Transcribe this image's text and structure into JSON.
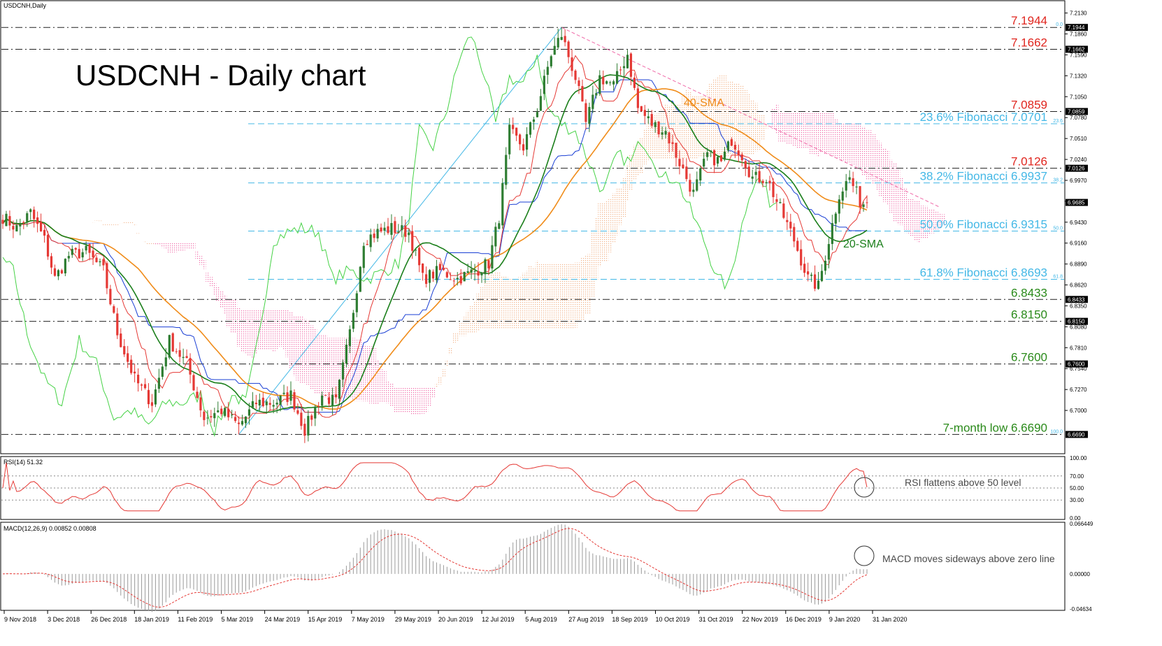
{
  "window": {
    "symbol_label": "USDCNH,Daily",
    "main_title": "USDCNH - Daily chart"
  },
  "colors": {
    "background": "#ffffff",
    "bull_candle": "#2e7d32",
    "bear_candle": "#e53935",
    "sma20": "#1b7f1b",
    "sma40": "#f08c1a",
    "tenkan": "#e53935",
    "kijun": "#1a3fd4",
    "chikou": "#46d246",
    "cloud": "#f06aa8",
    "fib_line": "#44b8e6",
    "level_red": "#e0261f",
    "level_green": "#2a8a1a",
    "rsi": "#e53935",
    "macd_hist": "#9a9a9a",
    "macd_signal": "#e53935",
    "panel_text": "#4a4a4a"
  },
  "chart_data": [
    {
      "type": "candlestick",
      "panel": "price",
      "title": "USDCNH - Daily chart",
      "symbol": "USDCNH,Daily",
      "ylim": [
        6.645,
        7.228
      ],
      "y_ticks": [
        "7.2130",
        "7.1860",
        "7.1590",
        "7.1320",
        "7.1050",
        "7.0780",
        "7.0510",
        "7.0240",
        "6.9970",
        "6.9700",
        "6.9430",
        "6.9160",
        "6.8890",
        "6.8620",
        "6.8350",
        "6.8080",
        "6.7810",
        "6.7540",
        "6.7270",
        "6.7000"
      ],
      "x_ticks": [
        "9 Nov 2018",
        "3 Dec 2018",
        "26 Dec 2018",
        "18 Jan 2019",
        "11 Feb 2019",
        "5 Mar 2019",
        "24 Mar 2019",
        "15 Apr 2019",
        "7 May 2019",
        "29 May 2019",
        "20 Jun 2019",
        "12 Jul 2019",
        "5 Aug 2019",
        "27 Aug 2019",
        "18 Sep 2019",
        "10 Oct 2019",
        "31 Oct 2019",
        "22 Nov 2019",
        "16 Dec 2019",
        "9 Jan 2020",
        "31 Jan 2020"
      ],
      "anchor_points": [
        {
          "bar": 0,
          "price": 6.95
        },
        {
          "bar": 4,
          "price": 6.935
        },
        {
          "bar": 8,
          "price": 6.955
        },
        {
          "bar": 12,
          "price": 6.92
        },
        {
          "bar": 15,
          "price": 6.87
        },
        {
          "bar": 19,
          "price": 6.9
        },
        {
          "bar": 24,
          "price": 6.905
        },
        {
          "bar": 29,
          "price": 6.88
        },
        {
          "bar": 33,
          "price": 6.8
        },
        {
          "bar": 38,
          "price": 6.74
        },
        {
          "bar": 43,
          "price": 6.71
        },
        {
          "bar": 48,
          "price": 6.79
        },
        {
          "bar": 53,
          "price": 6.76
        },
        {
          "bar": 58,
          "price": 6.69
        },
        {
          "bar": 63,
          "price": 6.7
        },
        {
          "bar": 68,
          "price": 6.68
        },
        {
          "bar": 73,
          "price": 6.71
        },
        {
          "bar": 78,
          "price": 6.71
        },
        {
          "bar": 83,
          "price": 6.72
        },
        {
          "bar": 87,
          "price": 6.675
        },
        {
          "bar": 92,
          "price": 6.72
        },
        {
          "bar": 96,
          "price": 6.71
        },
        {
          "bar": 100,
          "price": 6.8
        },
        {
          "bar": 104,
          "price": 6.92
        },
        {
          "bar": 108,
          "price": 6.93
        },
        {
          "bar": 112,
          "price": 6.935
        },
        {
          "bar": 117,
          "price": 6.93
        },
        {
          "bar": 121,
          "price": 6.87
        },
        {
          "bar": 126,
          "price": 6.88
        },
        {
          "bar": 131,
          "price": 6.87
        },
        {
          "bar": 136,
          "price": 6.88
        },
        {
          "bar": 140,
          "price": 6.89
        },
        {
          "bar": 143,
          "price": 6.95
        },
        {
          "bar": 146,
          "price": 7.06
        },
        {
          "bar": 150,
          "price": 7.04
        },
        {
          "bar": 154,
          "price": 7.09
        },
        {
          "bar": 158,
          "price": 7.16
        },
        {
          "bar": 161,
          "price": 7.185
        },
        {
          "bar": 165,
          "price": 7.13
        },
        {
          "bar": 168,
          "price": 7.07
        },
        {
          "bar": 172,
          "price": 7.13
        },
        {
          "bar": 176,
          "price": 7.12
        },
        {
          "bar": 180,
          "price": 7.16
        },
        {
          "bar": 183,
          "price": 7.09
        },
        {
          "bar": 187,
          "price": 7.07
        },
        {
          "bar": 191,
          "price": 7.06
        },
        {
          "bar": 195,
          "price": 7.02
        },
        {
          "bar": 199,
          "price": 6.98
        },
        {
          "bar": 203,
          "price": 7.03
        },
        {
          "bar": 207,
          "price": 7.02
        },
        {
          "bar": 210,
          "price": 7.05
        },
        {
          "bar": 213,
          "price": 7.03
        },
        {
          "bar": 216,
          "price": 7.0
        },
        {
          "bar": 220,
          "price": 7.0
        },
        {
          "bar": 224,
          "price": 6.96
        },
        {
          "bar": 228,
          "price": 6.92
        },
        {
          "bar": 232,
          "price": 6.87
        },
        {
          "bar": 235,
          "price": 6.86
        },
        {
          "bar": 238,
          "price": 6.92
        },
        {
          "bar": 241,
          "price": 6.98
        },
        {
          "bar": 244,
          "price": 7.0
        },
        {
          "bar": 247,
          "price": 6.97
        },
        {
          "bar": 249,
          "price": 6.965
        }
      ],
      "key_points": [
        {
          "date": "24 Mar 2019",
          "price": 6.669,
          "label": "7-month low"
        },
        {
          "date": "27 Aug 2019",
          "price": 7.1944,
          "label": "high"
        }
      ],
      "horizontal_levels": [
        {
          "label": "7.1944",
          "value": 7.1944,
          "style": "dash-dot",
          "color": "red"
        },
        {
          "label": "7.1662",
          "value": 7.1662,
          "style": "dash-dot",
          "color": "red"
        },
        {
          "label": "7.0859",
          "value": 7.0859,
          "style": "dash-dot",
          "color": "red"
        },
        {
          "label": "23.6% Fibonacci 7.0701",
          "value": 7.0701,
          "style": "dashed",
          "color": "blue"
        },
        {
          "label": "7.0126",
          "value": 7.0126,
          "style": "dash-dot",
          "color": "red"
        },
        {
          "label": "38.2% Fibonacci 6.9937",
          "value": 6.9937,
          "style": "dashed",
          "color": "blue"
        },
        {
          "label": "50.0% Fibonacci 6.9315",
          "value": 6.9315,
          "style": "dashed",
          "color": "blue"
        },
        {
          "label": "61.8% Fibonacci 6.8693",
          "value": 6.8693,
          "style": "dashed",
          "color": "blue"
        },
        {
          "label": "6.8433",
          "value": 6.8433,
          "style": "dash-dot",
          "color": "green"
        },
        {
          "label": "6.8150",
          "value": 6.815,
          "style": "dash-dot",
          "color": "green"
        },
        {
          "label": "6.7600",
          "value": 6.76,
          "style": "dash-dot",
          "color": "green"
        },
        {
          "label": "7-month low 6.6690",
          "value": 6.669,
          "style": "dash-dot",
          "color": "green"
        }
      ],
      "axis_price_tags": [
        "7.1944",
        "7.1662",
        "7.0859",
        "7.0126",
        "6.9685",
        "6.8433",
        "6.8150",
        "6.7600",
        "6.6690"
      ],
      "fib_small_labels": [
        "0.0",
        "23.6",
        "38.2",
        "50.0",
        "61.8",
        "100.0"
      ],
      "current_price": "6.9685",
      "series": [
        {
          "name": "20-SMA",
          "color": "#1b7f1b"
        },
        {
          "name": "40-SMA",
          "color": "#f08c1a"
        }
      ],
      "indicators": [
        "Ichimoku cloud",
        "Tenkan-sen",
        "Kijun-sen",
        "Chikou span"
      ]
    },
    {
      "type": "line",
      "panel": "rsi",
      "title": "RSI(14) 51.32",
      "ylim": [
        0,
        100
      ],
      "y_ticks": [
        "100.00",
        "70.00",
        "50.00",
        "30.00",
        "0.00"
      ],
      "last_value": 51.32,
      "annotation": "RSI flattens above 50 level"
    },
    {
      "type": "bar",
      "panel": "macd",
      "title": "MACD(12,26,9) 0.00852 0.00808",
      "y_ticks": [
        "0.066449",
        "0.00000",
        "-0.04634"
      ],
      "annotation": "MACD moves sideways above zero line"
    }
  ]
}
